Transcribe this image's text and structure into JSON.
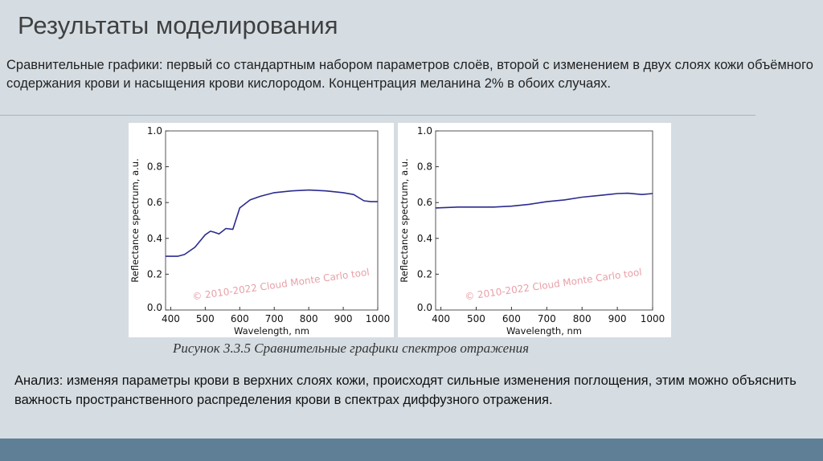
{
  "slide": {
    "title": "Результаты моделирования",
    "intro": "Сравнительные графики: первый со стандартным набором параметров слоёв, второй с изменением в двух слоях кожи объёмного содержания крови и насыщения крови кислородом. Концентрация меланина 2% в обоих случаях.",
    "caption": "Рисунок 3.3.5 Сравнительные графики спектров отражения",
    "analysis": "Анализ: изменяя параметры крови в верхних слоях кожи, происходят сильные изменения поглощения, этим можно объяснить важность пространственного распределения крови в спектрах диффузного отражения."
  },
  "colors": {
    "line": "#2b2b8f",
    "background": "#d5dde3",
    "bottom_bar": "#5f7f96"
  },
  "chart_data": [
    {
      "type": "line",
      "xlabel": "Wavelength, nm",
      "ylabel": "Reflectance spectrum, a.u.",
      "xlim": [
        385,
        1000
      ],
      "ylim": [
        0,
        1
      ],
      "xticks": [
        400,
        500,
        600,
        700,
        800,
        900,
        1000
      ],
      "yticks": [
        0.0,
        0.2,
        0.4,
        0.6,
        0.8,
        1.0
      ],
      "grid": false,
      "watermark": "© 2010-2022 Cloud Monte Carlo tool",
      "x": [
        385,
        420,
        440,
        470,
        500,
        515,
        525,
        540,
        560,
        580,
        600,
        630,
        660,
        700,
        750,
        800,
        850,
        900,
        930,
        960,
        980,
        1000
      ],
      "y": [
        0.3,
        0.3,
        0.31,
        0.35,
        0.42,
        0.44,
        0.435,
        0.425,
        0.455,
        0.45,
        0.57,
        0.615,
        0.635,
        0.655,
        0.665,
        0.67,
        0.665,
        0.655,
        0.645,
        0.61,
        0.605,
        0.605
      ]
    },
    {
      "type": "line",
      "xlabel": "Wavelength, nm",
      "ylabel": "Reflectance spectrum, a.u.",
      "xlim": [
        385,
        1000
      ],
      "ylim": [
        0,
        1
      ],
      "xticks": [
        400,
        500,
        600,
        700,
        800,
        900,
        1000
      ],
      "yticks": [
        0.0,
        0.2,
        0.4,
        0.6,
        0.8,
        1.0
      ],
      "grid": false,
      "watermark": "© 2010-2022 Cloud Monte Carlo tool",
      "x": [
        385,
        450,
        550,
        600,
        650,
        700,
        750,
        800,
        850,
        900,
        930,
        970,
        1000
      ],
      "y": [
        0.57,
        0.575,
        0.575,
        0.58,
        0.59,
        0.605,
        0.615,
        0.63,
        0.64,
        0.65,
        0.652,
        0.645,
        0.65
      ]
    }
  ]
}
